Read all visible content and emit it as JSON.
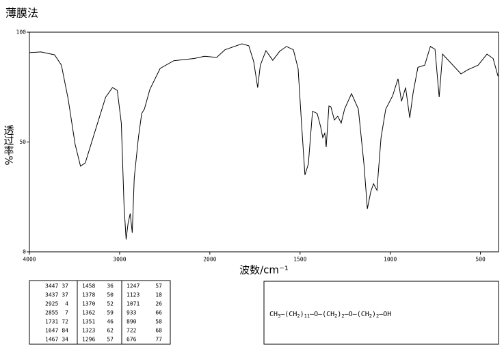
{
  "chart_data": {
    "type": "line",
    "title": "薄膜法",
    "xlabel": "波数/cm⁻¹",
    "ylabel": "透过率%",
    "xlim": [
      4000,
      400
    ],
    "ylim": [
      0,
      100
    ],
    "xticks": [
      4000,
      3000,
      2000,
      1500,
      1000,
      500
    ],
    "yticks": [
      0,
      50,
      100
    ],
    "color": "#000000",
    "x": [
      4000,
      3872,
      3721,
      3645,
      3570,
      3494,
      3434,
      3381,
      3268,
      3155,
      3079,
      3026,
      2981,
      2951,
      2928,
      2906,
      2883,
      2860,
      2838,
      2792,
      2755,
      2725,
      2664,
      2551,
      2400,
      2174,
      2060,
      1962,
      1916,
      1822,
      1784,
      1757,
      1735,
      1720,
      1689,
      1651,
      1613,
      1575,
      1537,
      1511,
      1492,
      1473,
      1454,
      1431,
      1405,
      1386,
      1374,
      1363,
      1355,
      1340,
      1329,
      1310,
      1291,
      1272,
      1253,
      1215,
      1177,
      1146,
      1127,
      1108,
      1093,
      1074,
      1051,
      1025,
      987,
      957,
      938,
      915,
      892,
      873,
      847,
      809,
      778,
      752,
      729,
      710,
      665,
      608,
      570,
      513,
      464,
      430,
      403
    ],
    "values": [
      90.7,
      91,
      89.7,
      85,
      69.5,
      49,
      39,
      40.5,
      55.5,
      70.4,
      74.8,
      73.5,
      58.6,
      21,
      5.6,
      13,
      17.4,
      8.7,
      33.6,
      52,
      63,
      65,
      74,
      83.5,
      87,
      88,
      89,
      88.5,
      92,
      94.7,
      93.8,
      86.6,
      74.8,
      85,
      91.6,
      87.2,
      91.3,
      93.5,
      92,
      83.5,
      58.6,
      35,
      40,
      64,
      63,
      57,
      52,
      54,
      47.7,
      66.4,
      66,
      60,
      61.7,
      58.6,
      65,
      72,
      65,
      40,
      19.6,
      27.4,
      31,
      28,
      52,
      65,
      71,
      78.8,
      68.5,
      74.8,
      61,
      72.6,
      84,
      85,
      93.5,
      92.2,
      70.4,
      90,
      86,
      81,
      82.9,
      85,
      90,
      88,
      80
    ]
  },
  "peak_table": {
    "rows": [
      [
        3447,
        37,
        1458,
        36,
        1247,
        57
      ],
      [
        3437,
        37,
        1378,
        50,
        1123,
        18
      ],
      [
        2925,
        4,
        1370,
        52,
        1071,
        26
      ],
      [
        2855,
        7,
        1362,
        59,
        933,
        66
      ],
      [
        1731,
        72,
        1351,
        46,
        890,
        58
      ],
      [
        1647,
        84,
        1323,
        62,
        722,
        68
      ],
      [
        1467,
        34,
        1296,
        57,
        676,
        77
      ]
    ]
  },
  "structure": {
    "parts": [
      "CH",
      "3",
      "—(CH",
      "2",
      ")",
      "11",
      "—O—(CH",
      "2",
      ")",
      "2",
      "—O—(CH",
      "2",
      ")",
      "2",
      "—OH"
    ]
  }
}
